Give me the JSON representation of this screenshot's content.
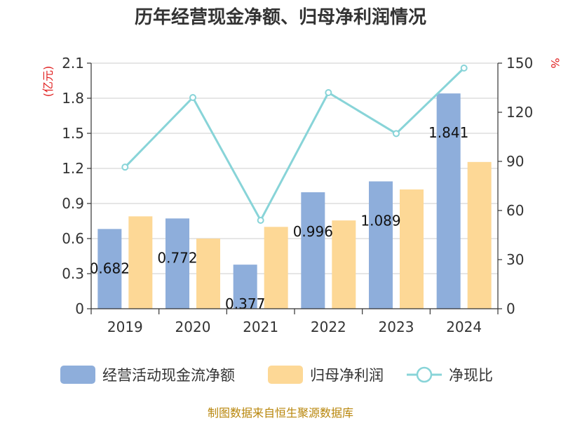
{
  "chart_data": {
    "type": "bar+line",
    "title": "历年经营现金净额、归母净利润情况",
    "categories": [
      "2019",
      "2020",
      "2021",
      "2022",
      "2023",
      "2024"
    ],
    "y_left": {
      "unit": "(亿元)",
      "ylim": [
        0,
        2.1
      ],
      "ticks": [
        "0",
        "0.3",
        "0.6",
        "0.9",
        "1.2",
        "1.5",
        "1.8",
        "2.1"
      ]
    },
    "y_right": {
      "unit": "%",
      "ylim": [
        0,
        150
      ],
      "ticks": [
        "0",
        "30",
        "60",
        "90",
        "120",
        "150"
      ]
    },
    "series": [
      {
        "name": "经营活动现金流净额",
        "type": "bar",
        "axis": "left",
        "color": "#8eaedb",
        "values": [
          0.682,
          0.772,
          0.377,
          0.996,
          1.089,
          1.841
        ],
        "labels": [
          "0.682",
          "0.772",
          "0.377",
          "0.996",
          "1.089",
          "1.841"
        ]
      },
      {
        "name": "归母净利润",
        "type": "bar",
        "axis": "left",
        "color": "#fdd896",
        "values": [
          0.79,
          0.6,
          0.7,
          0.755,
          1.02,
          1.255
        ]
      },
      {
        "name": "净现比",
        "type": "line",
        "axis": "right",
        "color": "#88d4d8",
        "values": [
          86.5,
          129,
          54,
          132,
          107,
          147
        ]
      }
    ],
    "grid": true,
    "legend_position": "bottom",
    "source": "制图数据来自恒生聚源数据库"
  }
}
